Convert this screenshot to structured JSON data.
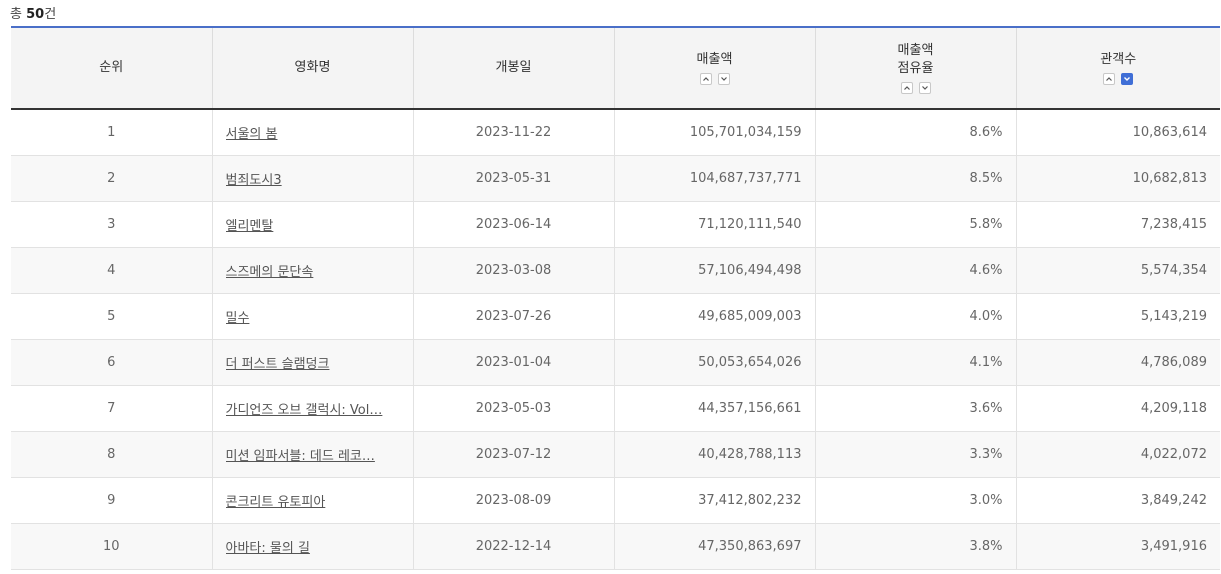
{
  "summary": {
    "prefix": "총 ",
    "count": "50",
    "suffix": "건"
  },
  "columns": {
    "rank": "순위",
    "title": "영화명",
    "release": "개봉일",
    "sales": "매출액",
    "share_line1": "매출액",
    "share_line2": "점유율",
    "audience": "관객수"
  },
  "sort": {
    "active_column": "audience",
    "active_direction": "desc"
  },
  "colors": {
    "accent": "#3f6ed6",
    "header_bg": "#f4f4f4",
    "row_alt": "#f8f8f8"
  },
  "rows": [
    {
      "rank": "1",
      "title": "서울의 봄",
      "release": "2023-11-22",
      "sales": "105,701,034,159",
      "share": "8.6%",
      "audience": "10,863,614"
    },
    {
      "rank": "2",
      "title": "범죄도시3",
      "release": "2023-05-31",
      "sales": "104,687,737,771",
      "share": "8.5%",
      "audience": "10,682,813"
    },
    {
      "rank": "3",
      "title": "엘리멘탈",
      "release": "2023-06-14",
      "sales": "71,120,111,540",
      "share": "5.8%",
      "audience": "7,238,415"
    },
    {
      "rank": "4",
      "title": "스즈메의 문단속",
      "release": "2023-03-08",
      "sales": "57,106,494,498",
      "share": "4.6%",
      "audience": "5,574,354"
    },
    {
      "rank": "5",
      "title": "밀수",
      "release": "2023-07-26",
      "sales": "49,685,009,003",
      "share": "4.0%",
      "audience": "5,143,219"
    },
    {
      "rank": "6",
      "title": "더 퍼스트 슬램덩크",
      "release": "2023-01-04",
      "sales": "50,053,654,026",
      "share": "4.1%",
      "audience": "4,786,089"
    },
    {
      "rank": "7",
      "title": "가디언즈 오브 갤럭시: Vol…",
      "release": "2023-05-03",
      "sales": "44,357,156,661",
      "share": "3.6%",
      "audience": "4,209,118"
    },
    {
      "rank": "8",
      "title": "미션 임파서블: 데드 레코…",
      "release": "2023-07-12",
      "sales": "40,428,788,113",
      "share": "3.3%",
      "audience": "4,022,072"
    },
    {
      "rank": "9",
      "title": "콘크리트 유토피아",
      "release": "2023-08-09",
      "sales": "37,412,802,232",
      "share": "3.0%",
      "audience": "3,849,242"
    },
    {
      "rank": "10",
      "title": "아바타: 물의 길",
      "release": "2022-12-14",
      "sales": "47,350,863,697",
      "share": "3.8%",
      "audience": "3,491,916"
    }
  ]
}
